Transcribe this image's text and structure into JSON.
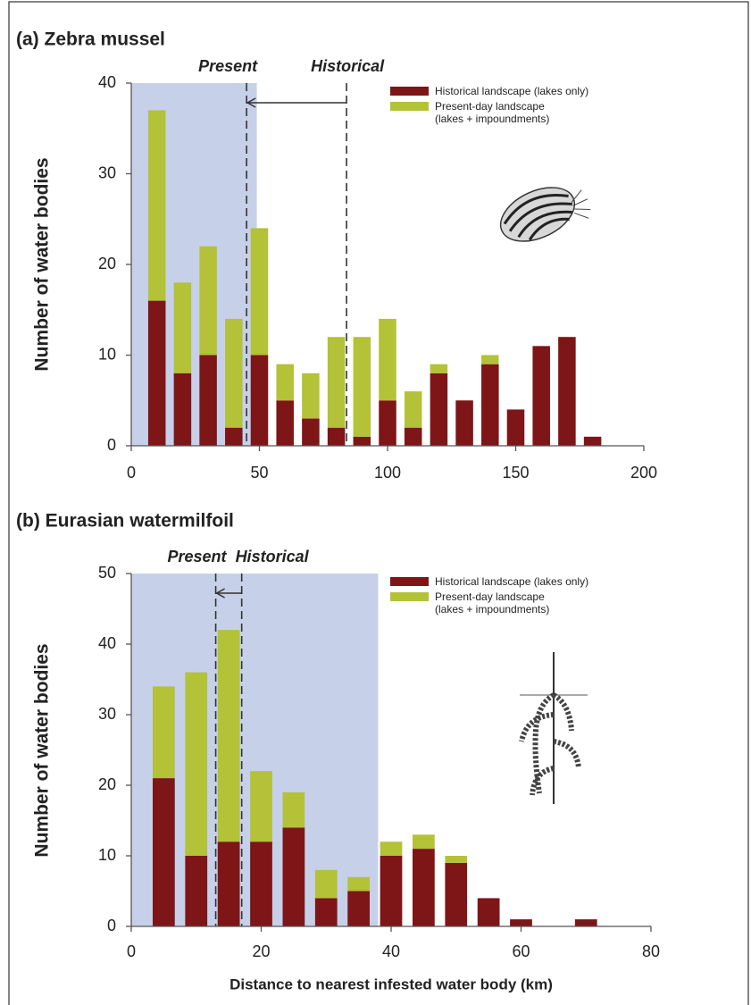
{
  "chart_data": [
    {
      "type": "bar",
      "stacked": true,
      "title": "(a) Zebra mussel",
      "ylabel": "Number of water bodies",
      "x": [
        10,
        20,
        30,
        40,
        50,
        60,
        70,
        80,
        90,
        100,
        110,
        120,
        130,
        140,
        150,
        160,
        170,
        180
      ],
      "series": [
        {
          "name": "Historical landscape (lakes only)",
          "color": "#7e1517",
          "values": [
            16,
            8,
            10,
            2,
            10,
            5,
            3,
            2,
            1,
            5,
            2,
            8,
            5,
            9,
            4,
            11,
            12,
            1
          ]
        },
        {
          "name": "Present-day landscape\n(lakes + impoundments)",
          "color": "#b3c237",
          "values": [
            21,
            10,
            12,
            12,
            14,
            4,
            5,
            10,
            11,
            9,
            4,
            1,
            0,
            1,
            0,
            0,
            0,
            0
          ]
        }
      ],
      "xlim": [
        0,
        200
      ],
      "xticks": [
        0,
        50,
        100,
        150,
        200
      ],
      "ylim": [
        0,
        40
      ],
      "yticks": [
        0,
        10,
        20,
        30,
        40
      ],
      "shaded_range": [
        0,
        49
      ],
      "shade_color": "#c6d0e9",
      "markers": [
        {
          "label": "Present",
          "x": 45
        },
        {
          "label": "Historical",
          "x": 84
        }
      ],
      "legend": "upper right"
    },
    {
      "type": "bar",
      "stacked": true,
      "title": "(b) Eurasian watermilfoil",
      "ylabel": "Number of water bodies",
      "xlabel": "Distance to nearest infested water body (km)",
      "x": [
        5,
        10,
        15,
        20,
        25,
        30,
        35,
        40,
        45,
        50,
        55,
        60,
        70
      ],
      "series": [
        {
          "name": "Historical landscape (lakes only)",
          "color": "#7e1517",
          "values": [
            21,
            10,
            12,
            12,
            14,
            4,
            5,
            10,
            11,
            9,
            4,
            1,
            1
          ]
        },
        {
          "name": "Present-day landscape\n(lakes + impoundments)",
          "color": "#b3c237",
          "values": [
            13,
            26,
            30,
            10,
            5,
            4,
            2,
            2,
            2,
            1,
            0,
            0,
            0
          ]
        }
      ],
      "xlim": [
        0,
        80
      ],
      "xticks": [
        0,
        20,
        40,
        60,
        80
      ],
      "ylim": [
        0,
        50
      ],
      "yticks": [
        0,
        10,
        20,
        30,
        40,
        50
      ],
      "shaded_range": [
        0,
        38
      ],
      "shade_color": "#c6d0e9",
      "markers": [
        {
          "label": "Present",
          "x": 13
        },
        {
          "label": "Historical",
          "x": 17
        }
      ],
      "legend": "upper right"
    }
  ]
}
